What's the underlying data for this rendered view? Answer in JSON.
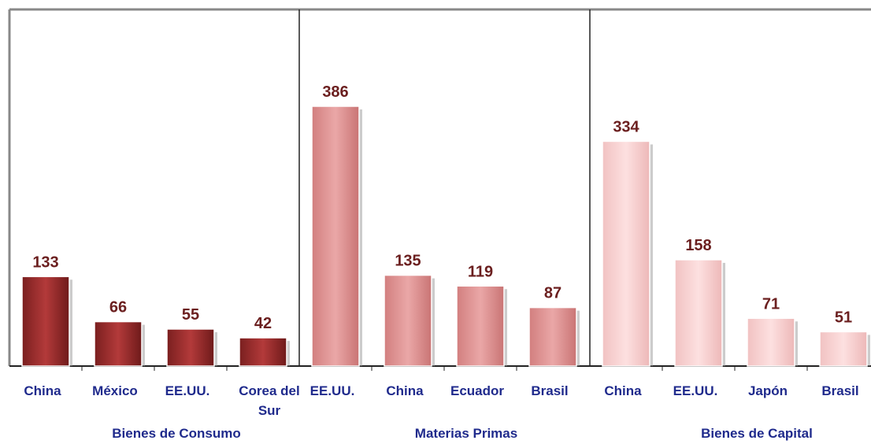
{
  "chart_data": {
    "type": "bar",
    "groups": [
      {
        "name": "Bienes de Consumo",
        "color": "#a83232",
        "categories": [
          "China",
          "México",
          "EE.UU.",
          "Corea del Sur"
        ],
        "values": [
          133,
          66,
          55,
          42
        ]
      },
      {
        "name": "Materias Primas",
        "color": "#e49a9a",
        "categories": [
          "EE.UU.",
          "China",
          "Ecuador",
          "Brasil"
        ],
        "values": [
          386,
          135,
          119,
          87
        ]
      },
      {
        "name": "Bienes de Capital",
        "color": "#f9d3d3",
        "categories": [
          "China",
          "EE.UU.",
          "Japón",
          "Brasil"
        ],
        "values": [
          334,
          158,
          71,
          51
        ]
      }
    ],
    "ylim": [
      0,
      386
    ],
    "grid": false,
    "legend": "none",
    "colors": {
      "value_label": "#6b1f1f",
      "category_label": "#1f2a8c",
      "frame": "#888888",
      "separator": "#222222"
    }
  }
}
